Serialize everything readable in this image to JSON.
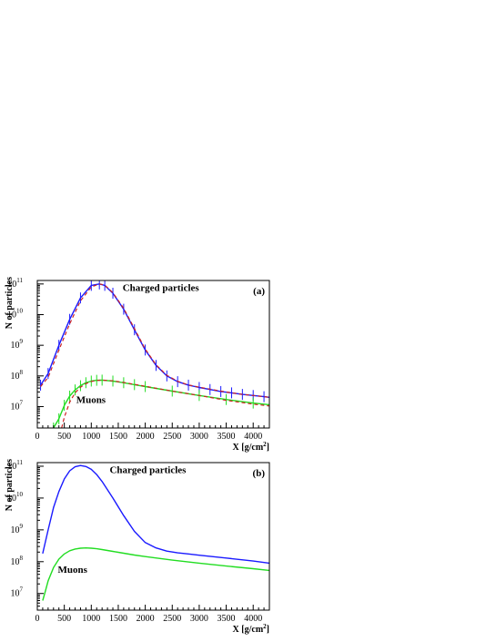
{
  "chart_data": [
    {
      "type": "line",
      "panel_label": "(a)",
      "xlabel": "X [g/cm",
      "xlabel_sup": "2",
      "xlabel_end": "]",
      "ylabel": "N of particles",
      "xlim": [
        0,
        4300
      ],
      "ylog": true,
      "ylim": [
        2000000.0,
        130000000000.0
      ],
      "x_ticks": [
        0,
        500,
        1000,
        1500,
        2000,
        2500,
        3000,
        3500,
        4000
      ],
      "y_ticks": [
        {
          "base": "10",
          "exp": "7"
        },
        {
          "base": "10",
          "exp": "8"
        },
        {
          "base": "10",
          "exp": "9"
        },
        {
          "base": "10",
          "exp": "10"
        },
        {
          "base": "10",
          "exp": "11"
        }
      ],
      "annotations": [
        {
          "text": "Charged particles",
          "x": 1580,
          "y": 60000000000.0
        },
        {
          "text": "Muons",
          "x": 720,
          "y": 13000000.0
        }
      ],
      "colors": {
        "charged": "#1a1aff",
        "muons": "#22dd22",
        "fit": "#cc2222"
      },
      "series": [
        {
          "group": "charged",
          "style": "solid-errorbars",
          "x": [
            60,
            200,
            400,
            600,
            800,
            1000,
            1150,
            1250,
            1400,
            1600,
            1800,
            2000,
            2200,
            2400,
            2600,
            2800,
            3000,
            3200,
            3400,
            3600,
            3800,
            4000,
            4200,
            4300
          ],
          "y": [
            50000000.0,
            120000000.0,
            1000000000.0,
            7000000000.0,
            35000000000.0,
            90000000000.0,
            100000000000.0,
            90000000000.0,
            50000000000.0,
            15000000000.0,
            3200000000.0,
            700000000.0,
            220000000.0,
            100000000.0,
            65000000.0,
            50000000.0,
            42000000.0,
            36000000.0,
            31000000.0,
            28000000.0,
            25000000.0,
            23000000.0,
            21000000.0,
            20000000.0
          ]
        },
        {
          "group": "fit",
          "style": "dashed",
          "x": [
            60,
            200,
            400,
            600,
            800,
            1000,
            1150,
            1250,
            1400,
            1600,
            1800,
            2000,
            2200,
            2400,
            2600,
            2800,
            3000,
            3200,
            3400,
            3600,
            3800,
            4000,
            4200,
            4300
          ],
          "y": [
            45000000.0,
            90000000.0,
            700000000.0,
            5000000000.0,
            28000000000.0,
            80000000000.0,
            100000000000.0,
            92000000000.0,
            52000000000.0,
            16000000000.0,
            3500000000.0,
            750000000.0,
            230000000.0,
            105000000.0,
            67000000.0,
            51000000.0,
            43000000.0,
            37000000.0,
            32000000.0,
            28000000.0,
            25000000.0,
            23000000.0,
            21000000.0,
            20000000.0
          ]
        },
        {
          "group": "muons",
          "style": "solid-errorbars",
          "x": [
            300,
            400,
            500,
            600,
            700,
            800,
            900,
            1000,
            1100,
            1200,
            1400,
            1600,
            1800,
            2000,
            2500,
            3000,
            3500,
            4000,
            4300
          ],
          "y": [
            2000000.0,
            4000000.0,
            11000000.0,
            22000000.0,
            35000000.0,
            48000000.0,
            60000000.0,
            68000000.0,
            72000000.0,
            73000000.0,
            68000000.0,
            60000000.0,
            52000000.0,
            45000000.0,
            32000000.0,
            23000000.0,
            17000000.0,
            13000000.0,
            11500000.0
          ]
        },
        {
          "group": "fit",
          "style": "dashed",
          "x": [
            450,
            500,
            600,
            700,
            800,
            900,
            1000,
            1100,
            1200,
            1400,
            1600,
            1800,
            2000,
            2500,
            3000,
            3500,
            4000,
            4300
          ],
          "y": [
            2000000.0,
            4500000.0,
            14000000.0,
            28000000.0,
            43000000.0,
            56000000.0,
            66000000.0,
            71000000.0,
            73000000.0,
            69000000.0,
            61000000.0,
            53000000.0,
            46000000.0,
            32000000.0,
            23000000.0,
            16000000.0,
            12000000.0,
            10500000.0
          ]
        }
      ]
    },
    {
      "type": "line",
      "panel_label": "(b)",
      "xlabel": "X [g/cm",
      "xlabel_sup": "2",
      "xlabel_end": "]",
      "ylabel": "N of particles",
      "xlim": [
        0,
        4300
      ],
      "ylog": true,
      "ylim": [
        3000000.0,
        130000000000.0
      ],
      "x_ticks": [
        0,
        500,
        1000,
        1500,
        2000,
        2500,
        3000,
        3500,
        4000
      ],
      "y_ticks": [
        {
          "base": "10",
          "exp": "7"
        },
        {
          "base": "10",
          "exp": "8"
        },
        {
          "base": "10",
          "exp": "9"
        },
        {
          "base": "10",
          "exp": "10"
        },
        {
          "base": "10",
          "exp": "11"
        }
      ],
      "annotations": [
        {
          "text": "Charged particles",
          "x": 1340,
          "y": 60000000000.0
        },
        {
          "text": "Muons",
          "x": 380,
          "y": 45000000.0
        }
      ],
      "colors": {
        "charged": "#1a1aff",
        "muons": "#22dd22"
      },
      "series": [
        {
          "group": "charged",
          "style": "solid",
          "x": [
            100,
            200,
            300,
            400,
            500,
            600,
            700,
            800,
            900,
            1000,
            1100,
            1200,
            1400,
            1600,
            1800,
            2000,
            2200,
            2400,
            2600,
            2800,
            3000,
            3500,
            4000,
            4300
          ],
          "y": [
            180000000.0,
            1000000000.0,
            5000000000.0,
            16000000000.0,
            40000000000.0,
            72000000000.0,
            96000000000.0,
            105000000000.0,
            98000000000.0,
            80000000000.0,
            55000000000.0,
            33000000000.0,
            10000000000.0,
            2800000000.0,
            900000000.0,
            400000000.0,
            270000000.0,
            215000000.0,
            190000000.0,
            175000000.0,
            160000000.0,
            130000000.0,
            105000000.0,
            90000000.0
          ]
        },
        {
          "group": "muons",
          "style": "solid",
          "x": [
            100,
            150,
            200,
            300,
            400,
            500,
            600,
            700,
            800,
            900,
            1000,
            1100,
            1200,
            1400,
            1600,
            1800,
            2000,
            2500,
            3000,
            3500,
            4000,
            4300
          ],
          "y": [
            6000000.0,
            12000000.0,
            25000000.0,
            65000000.0,
            120000000.0,
            175000000.0,
            220000000.0,
            250000000.0,
            265000000.0,
            270000000.0,
            265000000.0,
            255000000.0,
            240000000.0,
            210000000.0,
            185000000.0,
            162000000.0,
            145000000.0,
            112000000.0,
            90000000.0,
            73000000.0,
            60000000.0,
            53000000.0
          ]
        }
      ]
    }
  ]
}
